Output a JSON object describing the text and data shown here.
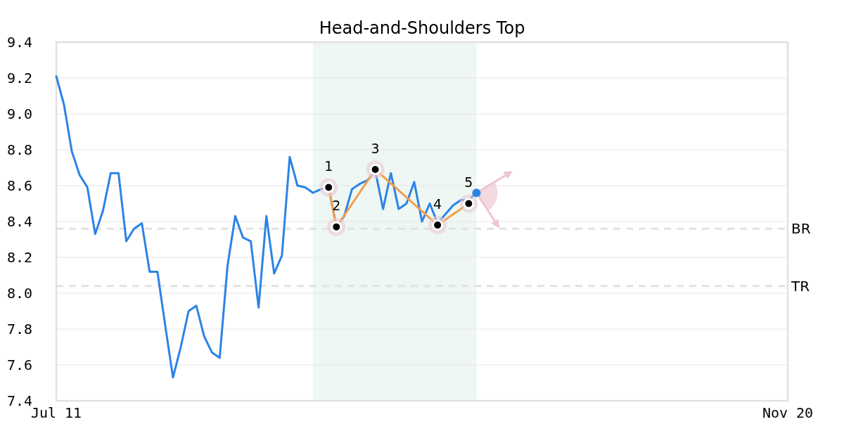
{
  "chart_data": {
    "type": "line",
    "title": "Head-and-Shoulders Top",
    "categories": [
      "Jul 11",
      null,
      null,
      null,
      null,
      null,
      null,
      null,
      null,
      null,
      null,
      null,
      null,
      null,
      null,
      null,
      null,
      null,
      null,
      null,
      null,
      null,
      null,
      null,
      null,
      null,
      null,
      null,
      null,
      null,
      null,
      null,
      null,
      null,
      null,
      null,
      null,
      null,
      null,
      null,
      null,
      null,
      null,
      null,
      null,
      null,
      null,
      null,
      null,
      null,
      null,
      null,
      null,
      null,
      null,
      null,
      null,
      null,
      null,
      null,
      null,
      null,
      null,
      null,
      null,
      null,
      null,
      null,
      null,
      null,
      null,
      null,
      null,
      null,
      null,
      null,
      null,
      null,
      null,
      null,
      null,
      null,
      null,
      null,
      null,
      null,
      null,
      null,
      null,
      null,
      null,
      null,
      null,
      null,
      "Nov 20"
    ],
    "series": [
      {
        "color": "#2b83e6",
        "values": [
          9.21,
          9.05,
          8.79,
          8.66,
          8.59,
          8.33,
          8.46,
          8.67,
          8.67,
          8.29,
          8.36,
          8.39,
          8.12,
          8.12,
          7.82,
          7.53,
          7.7,
          7.9,
          7.93,
          7.76,
          7.67,
          7.64,
          8.15,
          8.43,
          8.31,
          8.29,
          7.92,
          8.43,
          8.11,
          8.21,
          8.76,
          8.6,
          8.59,
          8.56,
          8.58,
          8.59,
          8.37,
          8.43,
          8.58,
          8.61,
          8.63,
          8.68,
          8.47,
          8.67,
          8.47,
          8.5,
          8.62,
          8.4,
          8.5,
          8.39,
          8.44,
          8.49,
          8.52,
          8.52,
          8.56,
          null,
          null,
          null,
          null,
          null,
          null,
          null,
          null,
          null,
          null,
          null,
          null,
          null,
          null,
          null,
          null,
          null,
          null,
          null,
          null,
          null,
          null,
          null,
          null,
          null,
          null,
          null,
          null,
          null,
          null,
          null,
          null,
          null,
          null,
          null,
          null,
          null,
          null,
          null,
          null
        ]
      },
      {
        "color": "#f59e4a",
        "marker": "circle",
        "values": [
          null,
          null,
          null,
          null,
          null,
          null,
          null,
          null,
          null,
          null,
          null,
          null,
          null,
          null,
          null,
          null,
          null,
          null,
          null,
          null,
          null,
          null,
          null,
          null,
          null,
          null,
          null,
          null,
          null,
          null,
          null,
          null,
          null,
          null,
          null,
          8.59,
          8.37,
          null,
          null,
          null,
          null,
          8.69,
          null,
          null,
          null,
          null,
          null,
          null,
          null,
          8.38,
          null,
          null,
          null,
          8.5,
          null,
          null,
          null,
          null,
          null,
          null,
          null,
          null,
          null,
          null,
          null,
          null,
          null,
          null,
          null,
          null,
          null,
          null,
          null,
          null,
          null,
          null,
          null,
          null,
          null,
          null,
          null,
          null,
          null,
          null,
          null,
          null,
          null,
          null,
          null,
          null,
          null,
          null,
          null,
          null,
          null
        ]
      },
      {
        "type": "scatter",
        "color": "#2b83e6",
        "marker": "circle",
        "values": [
          null,
          null,
          null,
          null,
          null,
          null,
          null,
          null,
          null,
          null,
          null,
          null,
          null,
          null,
          null,
          null,
          null,
          null,
          null,
          null,
          null,
          null,
          null,
          null,
          null,
          null,
          null,
          null,
          null,
          null,
          null,
          null,
          null,
          null,
          null,
          null,
          null,
          null,
          null,
          null,
          null,
          null,
          null,
          null,
          null,
          null,
          null,
          null,
          null,
          null,
          null,
          null,
          null,
          null,
          8.56,
          null,
          null,
          null,
          null,
          null,
          null,
          null,
          null,
          null,
          null,
          null,
          null,
          null,
          null,
          null,
          null,
          null,
          null,
          null,
          null,
          null,
          null,
          null,
          null,
          null,
          null,
          null,
          null,
          null,
          null,
          null,
          null,
          null,
          null,
          null,
          null,
          null,
          null,
          null,
          null
        ]
      }
    ],
    "ylim": [
      7.4,
      9.4
    ],
    "yticks": [
      7.4,
      7.6,
      7.8,
      {
        "value": 8,
        "label": "8.0"
      },
      8.2,
      8.4,
      8.6,
      8.8,
      {
        "value": 9,
        "label": "9.0"
      },
      9.2,
      9.4
    ],
    "grid": "y",
    "ref_lines": [
      {
        "axis": "y",
        "value": 8.36,
        "label": "BR",
        "color": "#e2e2e2",
        "line_style": "dashed"
      },
      {
        "axis": "y",
        "value": 8.04,
        "label": "TR",
        "color": "#e2e2e2",
        "line_style": "dashed"
      }
    ],
    "annotations": [
      {
        "text": "1",
        "y": 8.59
      },
      {
        "text": "2",
        "y": 8.37
      },
      {
        "text": "3",
        "y": 8.69
      },
      {
        "text": "4",
        "y": 8.38
      },
      {
        "text": "5",
        "y": 8.5
      }
    ]
  }
}
